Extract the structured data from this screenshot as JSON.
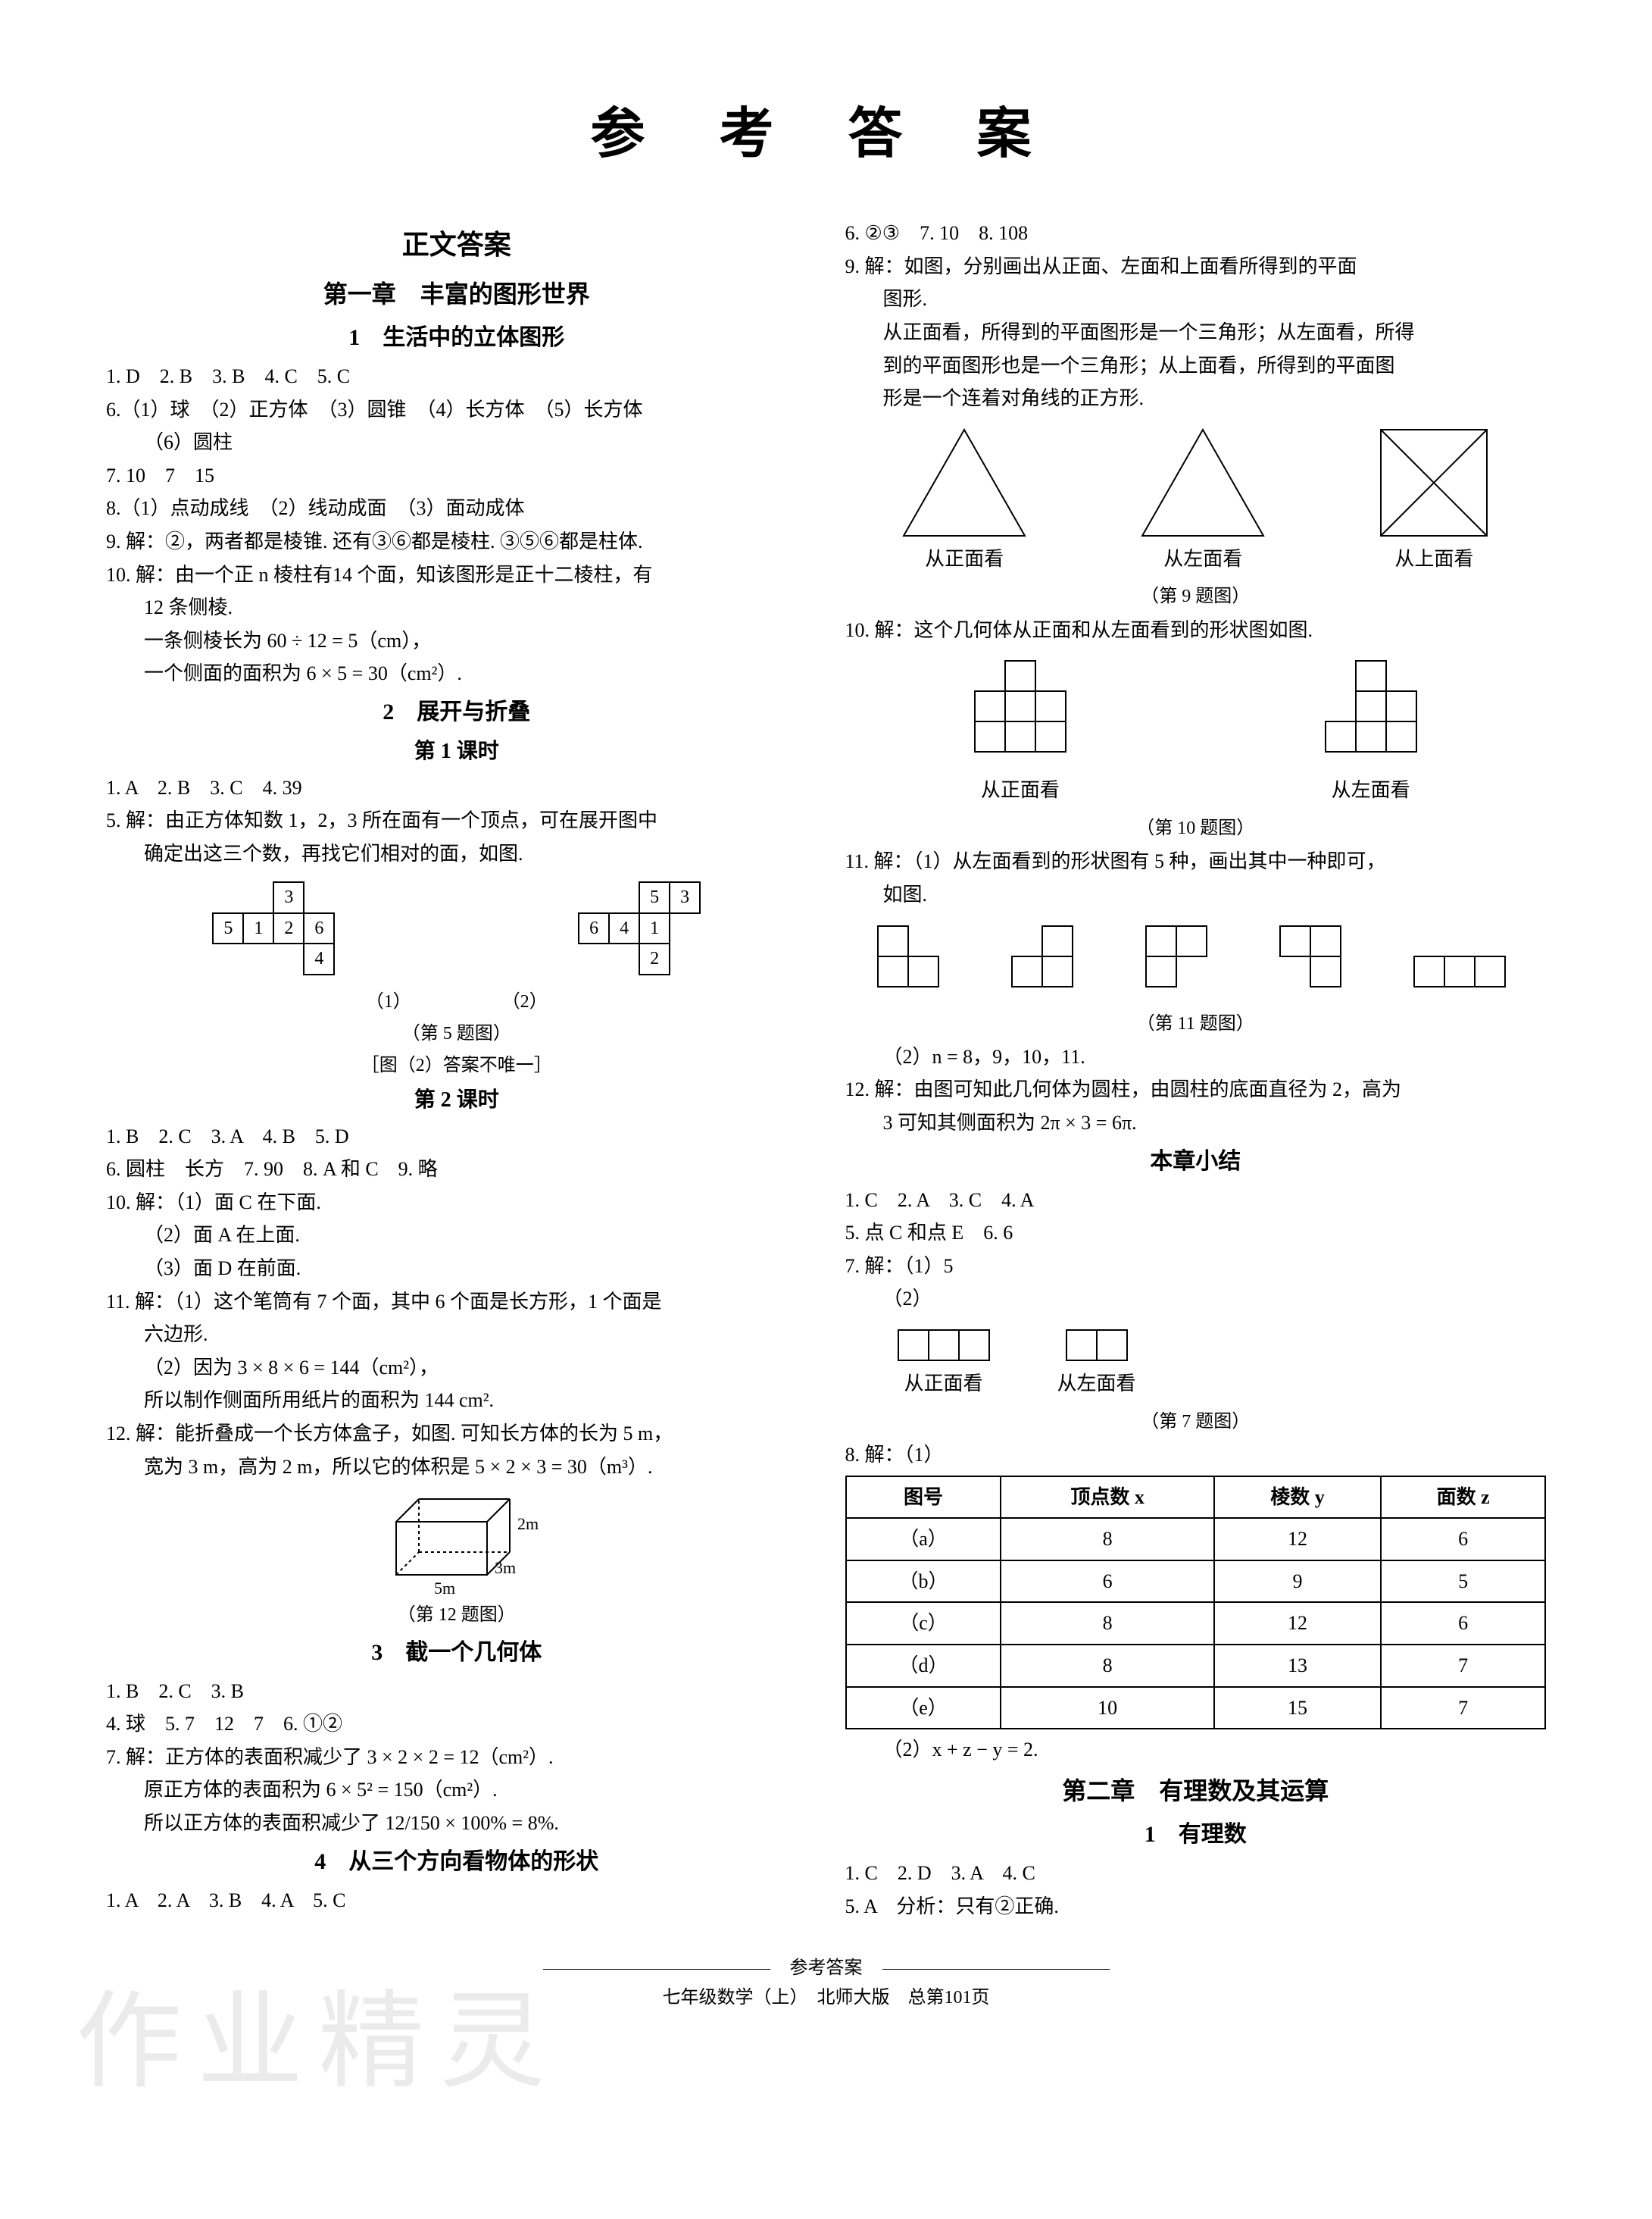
{
  "main_title": "参 考 答 案",
  "left": {
    "section": "正文答案",
    "chapter": "第一章　丰富的图形世界",
    "s1": {
      "title": "1　生活中的立体图形",
      "l1": "1. D　2. B　3. B　4. C　5. C",
      "l2": "6.（1）球　（2）正方体　（3）圆锥　（4）长方体　（5）长方体",
      "l2b": "（6）圆柱",
      "l3": "7. 10　7　15",
      "l4": "8.（1）点动成线　（2）线动成面　（3）面动成体",
      "l5": "9. 解：②，两者都是棱锥. 还有③⑥都是棱柱. ③⑤⑥都是柱体.",
      "l6": "10. 解：由一个正 n 棱柱有14 个面，知该图形是正十二棱柱，有",
      "l6b": "12 条侧棱.",
      "l6c": "一条侧棱长为 60 ÷ 12 = 5（cm），",
      "l6d": "一个侧面的面积为 6 × 5 = 30（cm²）."
    },
    "s2": {
      "title": "2　展开与折叠",
      "lesson1": "第 1 课时",
      "l1": "1. A　2. B　3. C　4. 39",
      "l2": "5. 解：由正方体知数 1，2，3 所在面有一个顶点，可在展开图中",
      "l2b": "确定出这三个数，再找它们相对的面，如图.",
      "unfold1": [
        [
          "",
          "",
          "3",
          "",
          ""
        ],
        [
          "5",
          "1",
          "2",
          "6",
          ""
        ],
        [
          "",
          "",
          "",
          "4",
          ""
        ]
      ],
      "unfold2": [
        [
          "",
          "",
          "5",
          "3"
        ],
        [
          "6",
          "4",
          "1",
          ""
        ],
        [
          "",
          "",
          "2",
          ""
        ]
      ],
      "cap_12": "（1）　　　　　　（2）",
      "cap_a": "（第 5 题图）",
      "cap_b": "［图（2）答案不唯一］",
      "lesson2": "第 2 课时",
      "l3": "1. B　2. C　3. A　4. B　5. D",
      "l4": "6. 圆柱　长方　7. 90　8. A 和 C　9. 略",
      "l5": "10. 解：（1）面 C 在下面.",
      "l5b": "（2）面 A 在上面.",
      "l5c": "（3）面 D 在前面.",
      "l6": "11. 解：（1）这个笔筒有 7 个面，其中 6 个面是长方形，1 个面是",
      "l6b": "六边形.",
      "l6c": "（2）因为 3 × 8 × 6 = 144（cm²），",
      "l6d": "所以制作侧面所用纸片的面积为 144 cm².",
      "l7": "12. 解：能折叠成一个长方体盒子，如图. 可知长方体的长为 5 m，",
      "l7b": "宽为 3 m，高为 2 m，所以它的体积是 5 × 2 × 3 = 30（m³）.",
      "cap12": "（第 12 题图）",
      "box_labels": {
        "h": "2m",
        "d": "3m",
        "w": "5m"
      }
    },
    "s3": {
      "title": "3　截一个几何体",
      "l1": "1. B　2. C　3. B",
      "l2": "4. 球　5. 7　12　7　6. ①②",
      "l3": "7. 解：正方体的表面积减少了 3 × 2 × 2 = 12（cm²）.",
      "l3b": "原正方体的表面积为 6 × 5² = 150（cm²）.",
      "l3c": "所以正方体的表面积减少了 12/150 × 100% = 8%."
    },
    "s4": {
      "title": "4　从三个方向看物体的形状",
      "l1": "1. A　2. A　3. B　4. A　5. C"
    }
  },
  "right": {
    "l1": "6. ②③　7. 10　8. 108",
    "l2": "9. 解：如图，分别画出从正面、左面和上面看所得到的平面",
    "l2b": "图形.",
    "l2c": "从正面看，所得到的平面图形是一个三角形；从左面看，所得",
    "l2d": "到的平面图形也是一个三角形；从上面看，所得到的平面图",
    "l2e": "形是一个连着对角线的正方形.",
    "fig9_labels": {
      "a": "从正面看",
      "b": "从左面看",
      "c": "从上面看"
    },
    "cap9": "（第 9 题图）",
    "l3": "10. 解：这个几何体从正面和从左面看到的形状图如图.",
    "fig10_labels": {
      "a": "从正面看",
      "b": "从左面看"
    },
    "cap10": "（第 10 题图）",
    "l4": "11. 解：（1）从左面看到的形状图有 5 种，画出其中一种即可，",
    "l4b": "如图.",
    "cap11": "（第 11 题图）",
    "l5": "（2）n = 8，9，10，11.",
    "l6": "12. 解：由图可知此几何体为圆柱，由圆柱的底面直径为 2，高为",
    "l6b": "3 可知其侧面积为 2π × 3 = 6π.",
    "summary_title": "本章小结",
    "sm1": "1. C　2. A　3. C　4. A",
    "sm2": "5. 点 C 和点 E　6. 6",
    "sm3": "7. 解：（1）5",
    "sm3b": "（2）",
    "fig7_labels": {
      "a": "从正面看",
      "b": "从左面看"
    },
    "cap7": "（第 7 题图）",
    "sm4": "8. 解：（1）",
    "table": {
      "headers": [
        "图号",
        "顶点数 x",
        "棱数 y",
        "面数 z"
      ],
      "rows": [
        [
          "（a）",
          "8",
          "12",
          "6"
        ],
        [
          "（b）",
          "6",
          "9",
          "5"
        ],
        [
          "（c）",
          "8",
          "12",
          "6"
        ],
        [
          "（d）",
          "8",
          "13",
          "7"
        ],
        [
          "（e）",
          "10",
          "15",
          "7"
        ]
      ]
    },
    "sm5": "（2）x + z − y = 2.",
    "chapter2": "第二章　有理数及其运算",
    "s1_title": "1　有理数",
    "c2l1": "1. C　2. D　3. A　4. C",
    "c2l2": "5. A　分析：只有②正确."
  },
  "footer": {
    "center": "参考答案",
    "line": "七年级数学（上）　北师大版　总第101页"
  },
  "watermark": "作业精灵"
}
